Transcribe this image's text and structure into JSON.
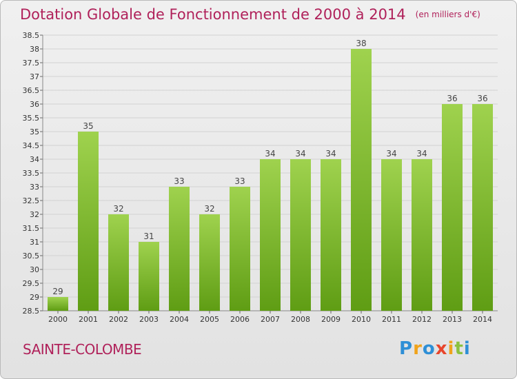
{
  "title": "Dotation Globale de Fonctionnement de 2000 à 2014",
  "unit_note": "(en milliers d'€)",
  "commune": "SAINTE-COLOMBE",
  "logo": {
    "letters": [
      "P",
      "r",
      "o",
      "x",
      "i",
      "t",
      "i"
    ],
    "colors": [
      "#2e8fd6",
      "#f0a31b",
      "#2e8fd6",
      "#e8452c",
      "#f0a31b",
      "#8bc13f",
      "#2e8fd6"
    ]
  },
  "colors": {
    "bar_light": "#9fd24e",
    "bar_dark": "#5f9d14",
    "title": "#b0215a"
  },
  "chart_data": {
    "type": "bar",
    "title": "Dotation Globale de Fonctionnement de 2000 à 2014",
    "xlabel": "",
    "ylabel": "",
    "categories": [
      "2000",
      "2001",
      "2002",
      "2003",
      "2004",
      "2005",
      "2006",
      "2007",
      "2008",
      "2009",
      "2010",
      "2011",
      "2012",
      "2013",
      "2014"
    ],
    "values": [
      29,
      35,
      32,
      31,
      33,
      32,
      33,
      34,
      34,
      34,
      38,
      34,
      34,
      36,
      36
    ],
    "ylim": [
      28.5,
      38.5
    ],
    "yticks": [
      "28.5",
      "29",
      "29.5",
      "30",
      "30.5",
      "31",
      "31.5",
      "32",
      "32.5",
      "33",
      "33.5",
      "34",
      "34.5",
      "35",
      "35.5",
      "36",
      "36.5",
      "37",
      "37.5",
      "38",
      "38.5"
    ],
    "grid": true,
    "legend": "none"
  }
}
